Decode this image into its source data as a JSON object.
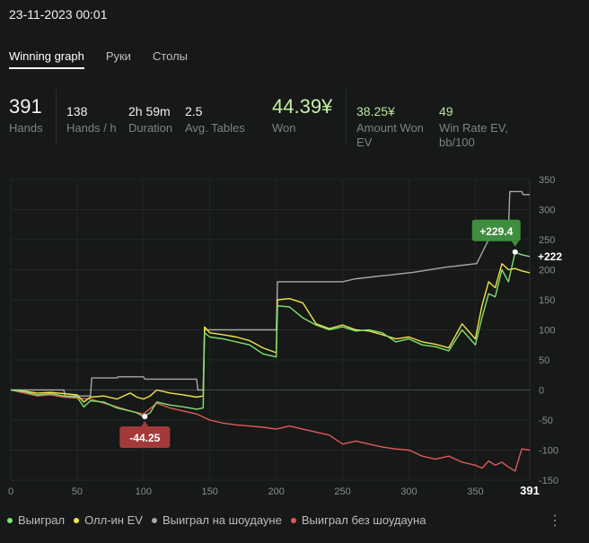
{
  "timestamp": "23-11-2023 00:01",
  "tabs": [
    {
      "label": "Winning graph",
      "active": true
    },
    {
      "label": "Руки",
      "active": false
    },
    {
      "label": "Столы",
      "active": false
    }
  ],
  "stats": {
    "hands": {
      "value": "391",
      "label": "Hands"
    },
    "hands_per_hour": {
      "value": "138",
      "label": "Hands / h"
    },
    "duration": {
      "value": "2h 59m",
      "label": "Duration"
    },
    "avg_tables": {
      "value": "2.5",
      "label": "Avg. Tables"
    },
    "won": {
      "value": "44.39¥",
      "label": "Won"
    },
    "amount_won_ev": {
      "value": "38.25¥",
      "label": "Amount Won EV"
    },
    "win_rate_ev": {
      "value": "49",
      "label": "Win Rate EV, bb/100"
    }
  },
  "legend": [
    {
      "label": "Выиграл",
      "color": "#7ee36f"
    },
    {
      "label": "Олл-ин EV",
      "color": "#f2e44a"
    },
    {
      "label": "Выиграл на шоудауне",
      "color": "#a8a8a8"
    },
    {
      "label": "Выиграл без шоудауна",
      "color": "#e05a5a"
    }
  ],
  "chart_data": {
    "type": "line",
    "xlim": [
      0,
      391
    ],
    "ylim": [
      -150,
      350
    ],
    "x_ticks": [
      "0",
      "50",
      "100",
      "150",
      "200",
      "250",
      "300",
      "350"
    ],
    "x_end_label": "391",
    "y_ticks": [
      "350",
      "300",
      "250",
      "200",
      "150",
      "100",
      "50",
      "0",
      "-50",
      "-100",
      "-150"
    ],
    "y_tick_values": [
      350,
      300,
      250,
      200,
      150,
      100,
      50,
      0,
      -50,
      -100,
      -150
    ],
    "annotations": {
      "max_label": "+229.4",
      "max_x": 380,
      "max_y": 229.4,
      "min_label": "-44.25",
      "min_x": 101,
      "min_y": -44.25,
      "end_label": "+222",
      "end_y": 222
    },
    "series": [
      {
        "color": "#7ee36f",
        "x": [
          0,
          10,
          20,
          30,
          40,
          50,
          55,
          60,
          70,
          80,
          90,
          95,
          100,
          105,
          110,
          120,
          130,
          140,
          145,
          146,
          150,
          160,
          170,
          180,
          190,
          200,
          201,
          210,
          220,
          230,
          240,
          250,
          260,
          270,
          280,
          290,
          300,
          310,
          320,
          330,
          340,
          350,
          355,
          360,
          365,
          370,
          375,
          380,
          385,
          391
        ],
        "y": [
          0,
          -3,
          -8,
          -6,
          -10,
          -12,
          -28,
          -18,
          -20,
          -30,
          -35,
          -38,
          -44,
          -38,
          -20,
          -25,
          -28,
          -32,
          -30,
          95,
          88,
          85,
          80,
          75,
          60,
          55,
          140,
          138,
          120,
          108,
          100,
          105,
          98,
          100,
          95,
          80,
          85,
          75,
          72,
          65,
          100,
          75,
          120,
          160,
          155,
          200,
          180,
          229,
          225,
          222
        ]
      },
      {
        "color": "#f2e44a",
        "x": [
          0,
          10,
          20,
          30,
          40,
          50,
          55,
          60,
          70,
          80,
          90,
          95,
          100,
          105,
          110,
          120,
          130,
          140,
          145,
          146,
          150,
          160,
          170,
          180,
          190,
          200,
          201,
          210,
          220,
          230,
          240,
          250,
          260,
          270,
          280,
          290,
          300,
          310,
          320,
          330,
          340,
          350,
          355,
          360,
          365,
          370,
          375,
          380,
          385,
          391
        ],
        "y": [
          0,
          -2,
          -5,
          -4,
          -6,
          -8,
          -20,
          -12,
          -10,
          -15,
          -5,
          -12,
          -15,
          -10,
          0,
          -5,
          -8,
          -12,
          -10,
          105,
          95,
          92,
          88,
          82,
          70,
          62,
          150,
          152,
          145,
          110,
          102,
          108,
          100,
          98,
          92,
          85,
          88,
          80,
          76,
          70,
          110,
          85,
          140,
          180,
          170,
          210,
          200,
          202,
          198,
          195
        ]
      },
      {
        "color": "#a8a8a8",
        "x": [
          0,
          40,
          41,
          60,
          61,
          80,
          81,
          100,
          101,
          140,
          141,
          145,
          146,
          200,
          201,
          250,
          260,
          261,
          280,
          281,
          300,
          301,
          330,
          331,
          350,
          351,
          360,
          361,
          365,
          375,
          376,
          385,
          386,
          391
        ],
        "y": [
          0,
          0,
          -10,
          -10,
          20,
          20,
          22,
          22,
          18,
          18,
          0,
          0,
          100,
          100,
          180,
          180,
          185,
          185,
          190,
          190,
          195,
          195,
          205,
          205,
          210,
          210,
          250,
          250,
          268,
          268,
          330,
          330,
          325,
          325
        ]
      },
      {
        "color": "#e05a5a",
        "x": [
          0,
          10,
          20,
          30,
          40,
          60,
          70,
          80,
          90,
          100,
          110,
          120,
          130,
          140,
          150,
          160,
          170,
          180,
          190,
          200,
          210,
          220,
          230,
          240,
          250,
          260,
          270,
          280,
          290,
          300,
          310,
          320,
          330,
          340,
          350,
          355,
          360,
          365,
          370,
          375,
          380,
          385,
          391
        ],
        "y": [
          0,
          -5,
          -10,
          -8,
          -12,
          -15,
          -22,
          -28,
          -35,
          -40,
          -22,
          -30,
          -35,
          -40,
          -50,
          -55,
          -58,
          -60,
          -62,
          -65,
          -60,
          -65,
          -70,
          -75,
          -90,
          -85,
          -90,
          -95,
          -98,
          -100,
          -110,
          -115,
          -110,
          -120,
          -125,
          -130,
          -118,
          -125,
          -120,
          -128,
          -135,
          -98,
          -100
        ]
      }
    ]
  }
}
